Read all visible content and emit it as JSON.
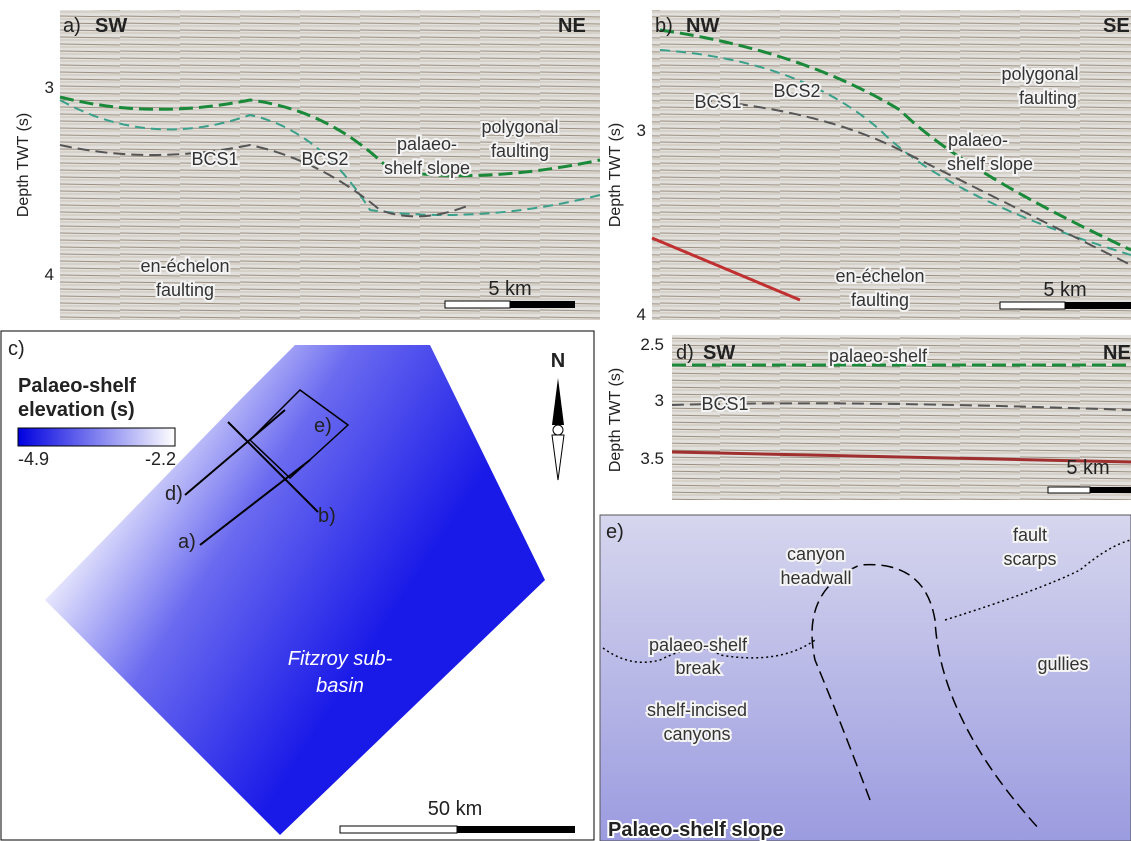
{
  "panel_a": {
    "label": "a)",
    "left": "SW",
    "right": "NE",
    "y_axis_label": "Depth TWT (s)",
    "yticks": [
      3,
      4
    ],
    "bcs1": "BCS1",
    "bcs2": "BCS2",
    "slope": [
      "palaeo-",
      "shelf slope"
    ],
    "polygonal": [
      "polygonal",
      "faulting"
    ],
    "echelon": [
      "en-échelon",
      "faulting"
    ],
    "scale": "5 km"
  },
  "panel_b": {
    "label": "b)",
    "left": "NW",
    "right": "SE",
    "y_axis_label": "Depth TWT (s)",
    "yticks": [
      3,
      4
    ],
    "bcs1": "BCS1",
    "bcs2": "BCS2",
    "polygonal": [
      "polygonal",
      "faulting"
    ],
    "slope": [
      "palaeo-",
      "shelf slope"
    ],
    "echelon": [
      "en-échelon",
      "faulting"
    ],
    "scale": "5 km"
  },
  "panel_c": {
    "label": "c)",
    "legend_title": [
      "Palaeo-shelf",
      "elevation (s)"
    ],
    "colorbar_min": -4.9,
    "colorbar_max": -2.2,
    "north": "N",
    "line_d": "d)",
    "line_a": "a)",
    "line_b": "b)",
    "box_e": "e)",
    "basin": [
      "Fitzroy sub-",
      "basin"
    ],
    "scale": "50 km"
  },
  "panel_d": {
    "label": "d)",
    "left": "SW",
    "right": "NE",
    "y_axis_label": "Depth TWT (s)",
    "yticks": [
      2.5,
      3,
      3.5
    ],
    "shelf": "palaeo-shelf",
    "bcs1": "BCS1",
    "scale": "5 km"
  },
  "panel_e": {
    "label": "e)",
    "headwall": [
      "canyon",
      "headwall"
    ],
    "scarps": [
      "fault",
      "scarps"
    ],
    "break": [
      "palaeo-shelf",
      "break"
    ],
    "gullies": "gullies",
    "canyons": [
      "shelf-incised",
      "canyons"
    ],
    "title": "Palaeo-shelf slope"
  }
}
